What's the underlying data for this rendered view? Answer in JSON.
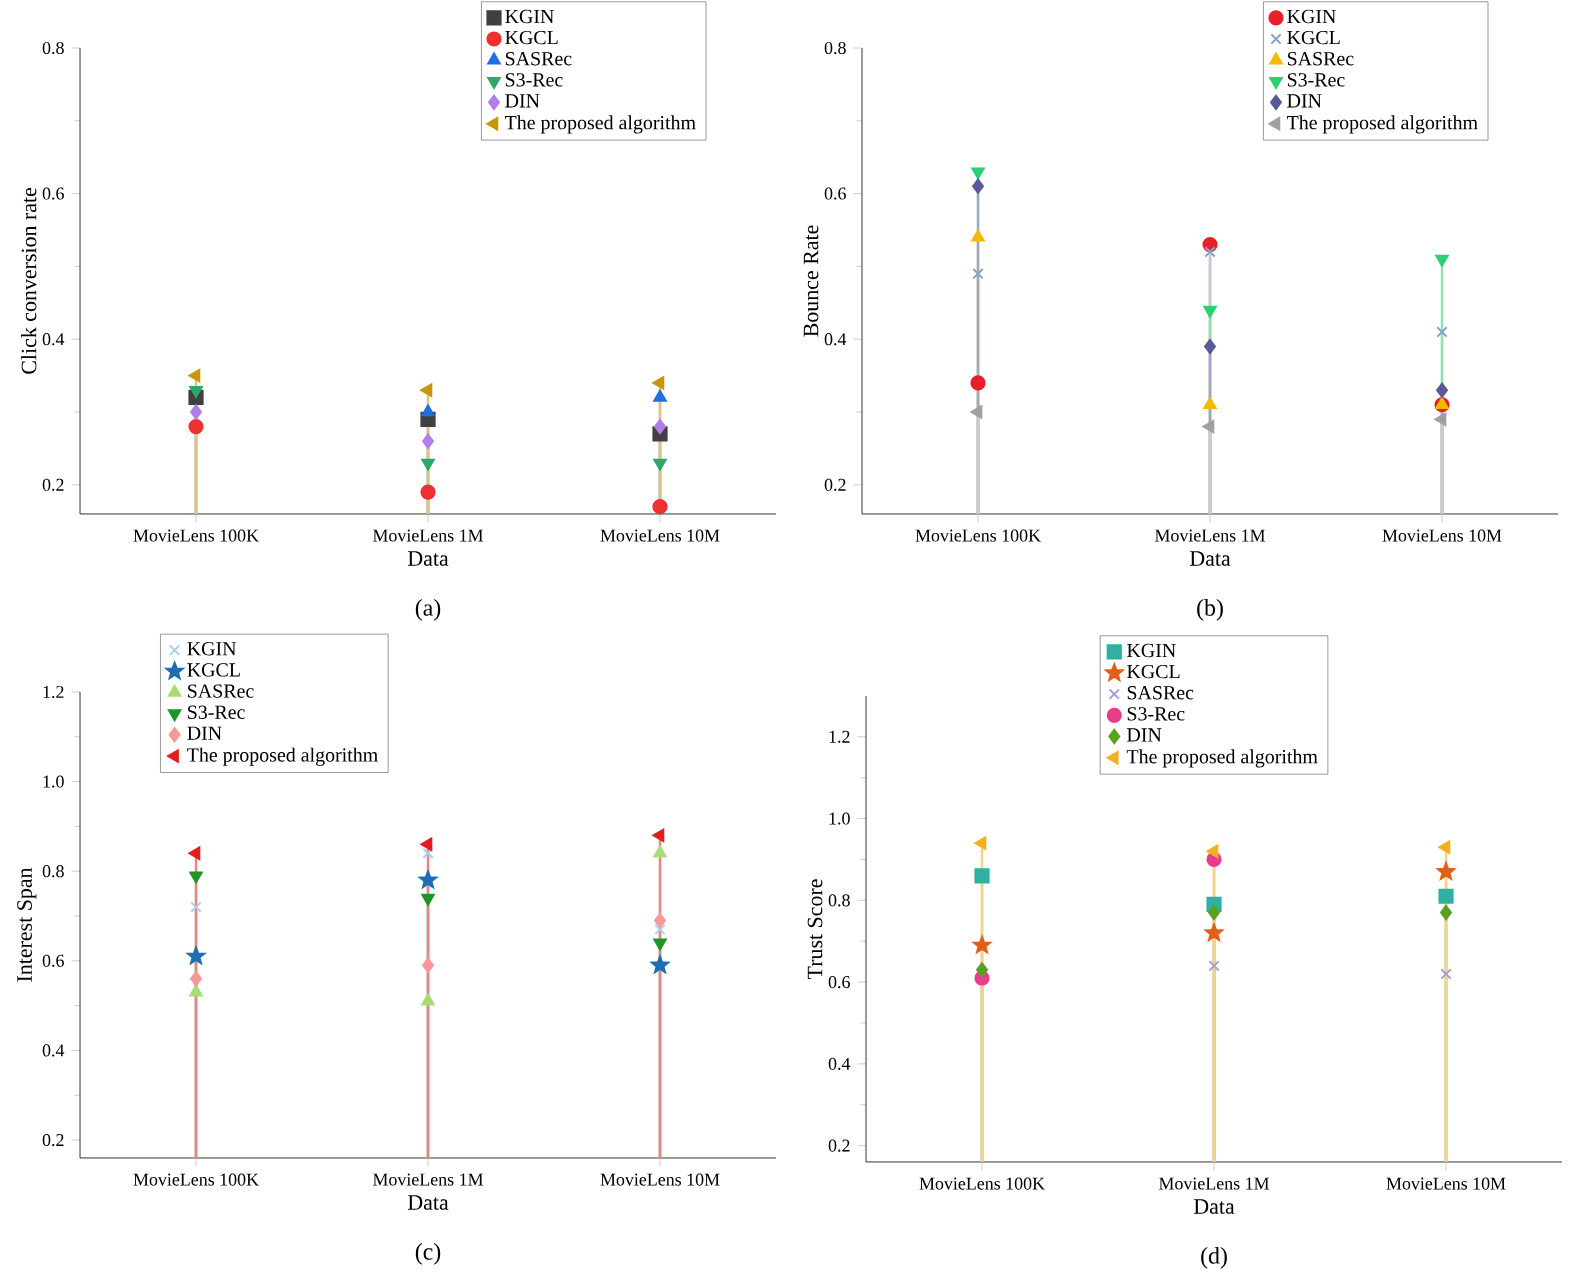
{
  "chart_data": [
    {
      "type": "lollipop",
      "xlabel": "Data",
      "ylabel": "Click conversion rate",
      "annotations": [
        "(a)"
      ],
      "categories": [
        "MovieLens 100K",
        "MovieLens 1M",
        "MovieLens 10M"
      ],
      "ylim": [
        0.16,
        0.8
      ],
      "yticks": [
        0.2,
        0.4,
        0.6,
        0.8
      ],
      "legend": "top right",
      "series": [
        {
          "name": "KGIN",
          "color": "#404040",
          "marker": "square",
          "values": [
            0.32,
            0.29,
            0.27
          ]
        },
        {
          "name": "KGCL",
          "color": "#ee3030",
          "marker": "circle",
          "values": [
            0.28,
            0.19,
            0.17
          ]
        },
        {
          "name": "SASRec",
          "color": "#1f6fe0",
          "marker": "triangle",
          "values": [
            null,
            0.3,
            0.32
          ]
        },
        {
          "name": "S3-Rec",
          "color": "#2ca86a",
          "marker": "triangle-down",
          "values": [
            0.33,
            0.23,
            0.23
          ]
        },
        {
          "name": "DIN",
          "color": "#b07ee8",
          "marker": "diamond",
          "values": [
            0.3,
            0.26,
            0.28
          ]
        },
        {
          "name": "The proposed algorithm",
          "color": "#c8960a",
          "marker": "triangle-left",
          "values": [
            0.35,
            0.33,
            0.34
          ]
        }
      ]
    },
    {
      "type": "lollipop",
      "xlabel": "Data",
      "ylabel": "Bounce Rate",
      "annotations": [
        "(b)"
      ],
      "categories": [
        "MovieLens 100K",
        "MovieLens 1M",
        "MovieLens 10M"
      ],
      "ylim": [
        0.16,
        0.8
      ],
      "yticks": [
        0.2,
        0.4,
        0.6,
        0.8
      ],
      "legend": "top right",
      "series": [
        {
          "name": "KGIN",
          "color": "#e8202a",
          "marker": "circle",
          "values": [
            0.34,
            0.53,
            0.31
          ]
        },
        {
          "name": "KGCL",
          "color": "#8aa0c8",
          "marker": "cross",
          "values": [
            0.49,
            0.52,
            0.41
          ]
        },
        {
          "name": "SASRec",
          "color": "#f5b800",
          "marker": "triangle",
          "values": [
            0.54,
            0.31,
            0.31
          ]
        },
        {
          "name": "S3-Rec",
          "color": "#2bd070",
          "marker": "triangle-down",
          "values": [
            0.63,
            0.44,
            0.51
          ]
        },
        {
          "name": "DIN",
          "color": "#5a5a9a",
          "marker": "diamond",
          "values": [
            0.61,
            0.39,
            0.33
          ]
        },
        {
          "name": "The proposed algorithm",
          "color": "#a0a0a0",
          "marker": "triangle-left",
          "values": [
            0.3,
            0.28,
            0.29
          ]
        }
      ]
    },
    {
      "type": "lollipop",
      "xlabel": "Data",
      "ylabel": "Interest Span",
      "annotations": [
        "(c)"
      ],
      "categories": [
        "MovieLens 100K",
        "MovieLens 1M",
        "MovieLens 10M"
      ],
      "ylim": [
        0.16,
        1.2
      ],
      "yticks": [
        0.2,
        0.4,
        0.6,
        0.8,
        {
          "value": 1.0,
          "label": "1.0"
        },
        1.2
      ],
      "legend": "top left",
      "series": [
        {
          "name": "KGIN",
          "color": "#a8d0ec",
          "marker": "cross",
          "values": [
            0.72,
            0.84,
            0.67
          ]
        },
        {
          "name": "KGCL",
          "color": "#1e6eb4",
          "marker": "star",
          "values": [
            0.61,
            0.78,
            0.59
          ]
        },
        {
          "name": "SASRec",
          "color": "#a8dc78",
          "marker": "triangle",
          "values": [
            0.53,
            0.51,
            0.84
          ]
        },
        {
          "name": "S3-Rec",
          "color": "#1e9628",
          "marker": "triangle-down",
          "values": [
            0.79,
            0.74,
            0.64
          ]
        },
        {
          "name": "DIN",
          "color": "#f89898",
          "marker": "diamond",
          "values": [
            0.56,
            0.59,
            0.69
          ]
        },
        {
          "name": "The proposed algorithm",
          "color": "#e01e1e",
          "marker": "triangle-left",
          "values": [
            0.84,
            0.86,
            0.88
          ]
        }
      ]
    },
    {
      "type": "lollipop",
      "xlabel": "Data",
      "ylabel": "Trust Score",
      "annotations": [
        "(d)"
      ],
      "categories": [
        "MovieLens 100K",
        "MovieLens 1M",
        "MovieLens 10M"
      ],
      "ylim": [
        0.16,
        1.3
      ],
      "yticks": [
        0.2,
        0.4,
        0.6,
        0.8,
        {
          "value": 1.0,
          "label": "1.0"
        },
        1.2
      ],
      "legend": "top",
      "series": [
        {
          "name": "KGIN",
          "color": "#30b0a0",
          "marker": "square",
          "values": [
            0.86,
            0.79,
            0.81
          ]
        },
        {
          "name": "KGCL",
          "color": "#e06018",
          "marker": "star",
          "values": [
            0.69,
            0.72,
            0.87
          ]
        },
        {
          "name": "SASRec",
          "color": "#a8a0d8",
          "marker": "cross",
          "values": [
            null,
            0.64,
            0.62
          ]
        },
        {
          "name": "S3-Rec",
          "color": "#e83c8c",
          "marker": "circle",
          "values": [
            0.61,
            0.9,
            null
          ]
        },
        {
          "name": "DIN",
          "color": "#5aa020",
          "marker": "diamond",
          "values": [
            0.63,
            0.77,
            0.77
          ]
        },
        {
          "name": "The proposed algorithm",
          "color": "#f0b020",
          "marker": "triangle-left",
          "values": [
            0.94,
            0.92,
            0.93
          ]
        }
      ]
    }
  ]
}
